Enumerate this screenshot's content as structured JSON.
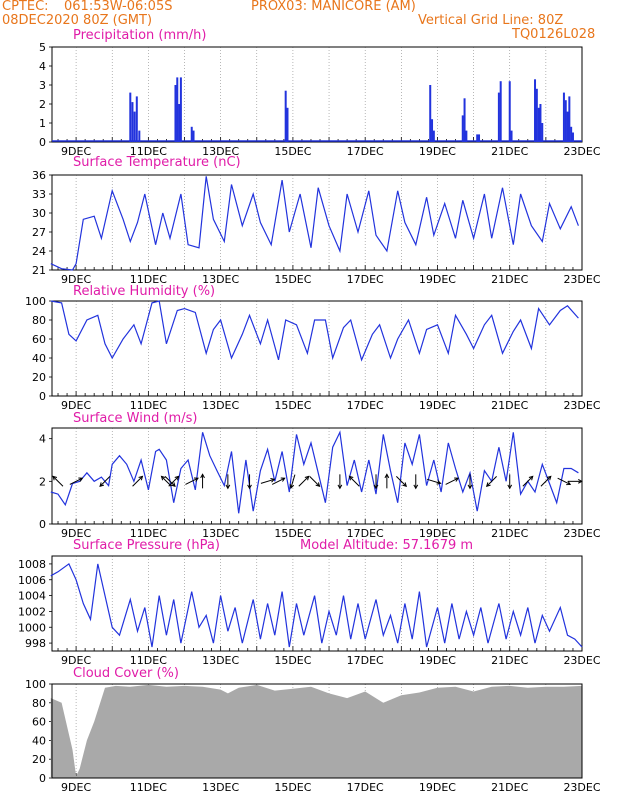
{
  "header": {
    "source": "CPTEC:",
    "coords": "061:53W-06:05S",
    "location": "PROX03: MANICORE (AM)",
    "datetime": "08DEC2020 80Z (GMT)",
    "gridline": "Vertical Grid Line: 80Z",
    "code": "TQ0126L028"
  },
  "colors": {
    "header": "#e8761c",
    "title": "#e01ca8",
    "line": "#2233dd",
    "bar": "#2233dd",
    "cloud": "#a9a9a9",
    "arrow": "#000000"
  },
  "x_tick_labels": [
    "9DEC",
    "11DEC",
    "13DEC",
    "15DEC",
    "17DEC",
    "19DEC",
    "21DEC",
    "23DEC"
  ],
  "chart_data": [
    {
      "type": "bar",
      "title": "Precipitation (mm/h)",
      "ylim": [
        0,
        5
      ],
      "yticks": [
        "0",
        "1",
        "2",
        "3",
        "4",
        "5"
      ],
      "x_days_start": "8DEC 08Z",
      "x": [
        10.5,
        10.56,
        10.62,
        10.68,
        10.75,
        11.75,
        11.8,
        11.85,
        11.9,
        12.2,
        12.25,
        14.8,
        14.85,
        18.8,
        18.85,
        18.9,
        19.7,
        19.75,
        19.8,
        20.1,
        20.15,
        20.7,
        20.75,
        21.0,
        21.05,
        21.7,
        21.75,
        21.8,
        21.85,
        21.9,
        22.5,
        22.55,
        22.6,
        22.65,
        22.7,
        22.75
      ],
      "values": [
        2.6,
        2.1,
        1.6,
        2.4,
        0.6,
        3.0,
        3.4,
        2.0,
        3.4,
        0.8,
        0.6,
        2.7,
        1.8,
        3.0,
        1.2,
        0.6,
        1.4,
        2.3,
        0.6,
        0.4,
        0.4,
        2.6,
        3.2,
        3.2,
        0.6,
        3.3,
        2.8,
        1.8,
        2.0,
        1.0,
        2.6,
        2.2,
        1.6,
        2.4,
        0.8,
        0.5
      ]
    },
    {
      "type": "line",
      "title": "Surface Temperature (nC)",
      "ylim": [
        21,
        36
      ],
      "yticks": [
        "21",
        "24",
        "27",
        "30",
        "33",
        "36"
      ],
      "x": [
        8.3,
        8.6,
        8.9,
        9.0,
        9.2,
        9.5,
        9.7,
        10.0,
        10.3,
        10.5,
        10.7,
        10.9,
        11.2,
        11.4,
        11.6,
        11.9,
        12.1,
        12.4,
        12.6,
        12.8,
        13.1,
        13.3,
        13.6,
        13.9,
        14.1,
        14.4,
        14.7,
        14.9,
        15.2,
        15.5,
        15.7,
        16.0,
        16.3,
        16.5,
        16.8,
        17.1,
        17.3,
        17.6,
        17.9,
        18.1,
        18.4,
        18.7,
        18.9,
        19.2,
        19.5,
        19.7,
        20.0,
        20.3,
        20.5,
        20.8,
        21.1,
        21.3,
        21.6,
        21.9,
        22.1,
        22.4,
        22.7,
        22.9
      ],
      "values": [
        22.0,
        21.2,
        21.0,
        22.0,
        29.0,
        29.5,
        26.0,
        33.5,
        29.0,
        25.5,
        28.5,
        33.0,
        25.0,
        30.0,
        26.0,
        33.0,
        25.0,
        24.5,
        35.8,
        29.0,
        25.5,
        34.5,
        28.0,
        33.0,
        28.5,
        25.0,
        35.2,
        27.0,
        33.0,
        24.5,
        34.0,
        28.0,
        24.0,
        33.0,
        27.0,
        33.5,
        26.5,
        24.0,
        33.5,
        28.5,
        25.0,
        32.5,
        26.5,
        31.5,
        26.0,
        32.0,
        26.0,
        33.0,
        26.0,
        34.0,
        25.0,
        33.0,
        28.0,
        25.5,
        31.5,
        27.5,
        31.0,
        28.0
      ]
    },
    {
      "type": "line",
      "title": "Relative Humidity (%)",
      "ylim": [
        0,
        100
      ],
      "yticks": [
        "0",
        "20",
        "40",
        "60",
        "80",
        "100"
      ],
      "x": [
        8.3,
        8.6,
        8.8,
        9.0,
        9.3,
        9.6,
        9.8,
        10.0,
        10.3,
        10.6,
        10.8,
        11.1,
        11.3,
        11.5,
        11.8,
        12.0,
        12.3,
        12.6,
        12.8,
        13.0,
        13.3,
        13.6,
        13.8,
        14.1,
        14.3,
        14.6,
        14.8,
        15.1,
        15.4,
        15.6,
        15.9,
        16.1,
        16.4,
        16.6,
        16.9,
        17.2,
        17.4,
        17.7,
        17.9,
        18.2,
        18.5,
        18.7,
        19.0,
        19.3,
        19.5,
        19.8,
        20.0,
        20.3,
        20.5,
        20.8,
        21.1,
        21.3,
        21.6,
        21.8,
        22.1,
        22.4,
        22.6,
        22.9
      ],
      "values": [
        100,
        98,
        65,
        58,
        80,
        85,
        55,
        40,
        60,
        75,
        55,
        98,
        100,
        55,
        90,
        92,
        88,
        45,
        70,
        80,
        40,
        65,
        85,
        55,
        80,
        38,
        80,
        75,
        45,
        80,
        80,
        40,
        72,
        80,
        38,
        65,
        75,
        40,
        60,
        80,
        45,
        70,
        75,
        45,
        85,
        65,
        50,
        75,
        85,
        45,
        68,
        80,
        50,
        92,
        75,
        90,
        95,
        82
      ]
    },
    {
      "type": "line",
      "title": "Surface Wind (m/s)",
      "ylim": [
        0,
        4.5
      ],
      "yticks": [
        "0",
        "2",
        "4"
      ],
      "x": [
        8.3,
        8.5,
        8.7,
        8.9,
        9.1,
        9.3,
        9.5,
        9.7,
        9.9,
        10.0,
        10.2,
        10.4,
        10.6,
        10.8,
        11.0,
        11.2,
        11.3,
        11.5,
        11.7,
        11.9,
        12.1,
        12.3,
        12.5,
        12.7,
        12.9,
        13.1,
        13.3,
        13.5,
        13.7,
        13.9,
        14.1,
        14.3,
        14.5,
        14.7,
        14.9,
        15.1,
        15.3,
        15.5,
        15.7,
        15.9,
        16.1,
        16.3,
        16.5,
        16.7,
        16.9,
        17.1,
        17.3,
        17.5,
        17.7,
        17.9,
        18.1,
        18.3,
        18.5,
        18.7,
        18.9,
        19.1,
        19.3,
        19.5,
        19.7,
        19.9,
        20.1,
        20.3,
        20.5,
        20.7,
        20.9,
        21.1,
        21.3,
        21.5,
        21.7,
        21.9,
        22.1,
        22.3,
        22.5,
        22.7,
        22.9
      ],
      "values": [
        1.5,
        1.4,
        0.9,
        1.9,
        2.0,
        2.4,
        2.0,
        2.2,
        1.8,
        2.8,
        3.2,
        2.8,
        2.0,
        3.0,
        1.6,
        3.4,
        3.5,
        3.0,
        1.0,
        2.6,
        3.0,
        1.6,
        4.3,
        3.2,
        2.5,
        1.8,
        3.4,
        0.5,
        3.0,
        0.6,
        2.5,
        3.5,
        2.0,
        3.4,
        1.5,
        4.2,
        2.8,
        3.8,
        2.4,
        1.0,
        3.6,
        4.3,
        1.8,
        3.0,
        1.5,
        3.0,
        1.4,
        4.2,
        2.5,
        1.0,
        3.8,
        2.8,
        4.2,
        1.8,
        3.0,
        1.5,
        3.8,
        2.6,
        1.5,
        2.4,
        0.6,
        2.5,
        2.0,
        3.6,
        2.0,
        4.3,
        1.4,
        2.0,
        1.5,
        2.8,
        1.9,
        1.0,
        2.6,
        2.6,
        2.4
      ],
      "arrows": [
        {
          "day": 8.5,
          "u": -1,
          "v": 1
        },
        {
          "day": 9.0,
          "u": 1,
          "v": 0.5
        },
        {
          "day": 9.8,
          "u": -1,
          "v": -1
        },
        {
          "day": 10.7,
          "u": 1,
          "v": 1
        },
        {
          "day": 11.5,
          "u": -1,
          "v": 1
        },
        {
          "day": 11.6,
          "u": 1,
          "v": -1
        },
        {
          "day": 11.7,
          "u": 1,
          "v": 1
        },
        {
          "day": 12.2,
          "u": 1,
          "v": 0.5
        },
        {
          "day": 12.5,
          "u": 0,
          "v": 1
        },
        {
          "day": 13.2,
          "u": 0,
          "v": -1
        },
        {
          "day": 13.8,
          "u": 0,
          "v": -1
        },
        {
          "day": 14.3,
          "u": 1,
          "v": 0.3
        },
        {
          "day": 14.6,
          "u": 1,
          "v": 0.5
        },
        {
          "day": 15.0,
          "u": -0.3,
          "v": -1
        },
        {
          "day": 15.3,
          "u": 1,
          "v": 1
        },
        {
          "day": 15.6,
          "u": 1,
          "v": -1
        },
        {
          "day": 16.3,
          "u": 0,
          "v": -1
        },
        {
          "day": 16.7,
          "u": -1,
          "v": 1
        },
        {
          "day": 17.3,
          "u": 0,
          "v": -1
        },
        {
          "day": 17.6,
          "u": 0,
          "v": 1
        },
        {
          "day": 18.0,
          "u": 1,
          "v": -1
        },
        {
          "day": 18.4,
          "u": 0,
          "v": -1
        },
        {
          "day": 18.9,
          "u": 1,
          "v": -0.3
        },
        {
          "day": 19.4,
          "u": 1,
          "v": 0.5
        },
        {
          "day": 19.9,
          "u": 0,
          "v": -1
        },
        {
          "day": 20.5,
          "u": -1,
          "v": -1
        },
        {
          "day": 21.0,
          "u": 0,
          "v": -1
        },
        {
          "day": 21.5,
          "u": 1,
          "v": 1
        },
        {
          "day": 22.0,
          "u": 1,
          "v": 1
        },
        {
          "day": 22.5,
          "u": 1,
          "v": -0.5
        },
        {
          "day": 22.8,
          "u": 1,
          "v": 0
        }
      ]
    },
    {
      "type": "line",
      "title": "Surface Pressure (hPa)",
      "subtitle": "Model Altitude: 57.1679 m",
      "ylim": [
        997,
        1009
      ],
      "yticks": [
        "998",
        "1000",
        "1002",
        "1004",
        "1006",
        "1008"
      ],
      "x": [
        8.3,
        8.5,
        8.8,
        9.0,
        9.2,
        9.4,
        9.6,
        9.8,
        10.0,
        10.2,
        10.5,
        10.7,
        10.9,
        11.1,
        11.3,
        11.5,
        11.7,
        11.9,
        12.2,
        12.4,
        12.6,
        12.8,
        13.0,
        13.2,
        13.4,
        13.6,
        13.9,
        14.1,
        14.3,
        14.5,
        14.7,
        14.9,
        15.1,
        15.3,
        15.6,
        15.8,
        16.0,
        16.2,
        16.4,
        16.6,
        16.8,
        17.0,
        17.3,
        17.5,
        17.7,
        17.9,
        18.1,
        18.3,
        18.5,
        18.7,
        19.0,
        19.2,
        19.4,
        19.6,
        19.8,
        20.0,
        20.2,
        20.4,
        20.7,
        20.9,
        21.1,
        21.3,
        21.5,
        21.7,
        21.9,
        22.1,
        22.4,
        22.6,
        22.8,
        23.0
      ],
      "values": [
        1006.5,
        1007.0,
        1008.0,
        1006.0,
        1003.0,
        1001.0,
        1008.0,
        1004.0,
        1000.0,
        999.0,
        1003.5,
        999.5,
        1002.5,
        997.5,
        1004.0,
        999.0,
        1003.5,
        998.0,
        1004.5,
        1000.0,
        1001.5,
        998.0,
        1004.0,
        999.5,
        1002.5,
        998.0,
        1003.5,
        998.5,
        1003.0,
        999.0,
        1004.5,
        997.5,
        1003.0,
        999.0,
        1004.0,
        998.0,
        1002.0,
        999.0,
        1004.0,
        998.5,
        1003.0,
        998.5,
        1003.5,
        999.0,
        1001.5,
        998.0,
        1003.0,
        998.5,
        1004.5,
        997.5,
        1002.5,
        998.0,
        1003.0,
        998.5,
        1002.0,
        999.0,
        1002.5,
        998.0,
        1003.0,
        998.5,
        1002.0,
        999.0,
        1002.5,
        998.0,
        1001.5,
        999.5,
        1002.5,
        999.0,
        998.5,
        997.5
      ]
    },
    {
      "type": "area",
      "title": "Cloud Cover (%)",
      "ylim": [
        0,
        100
      ],
      "yticks": [
        "0",
        "20",
        "40",
        "60",
        "80",
        "100"
      ],
      "x": [
        8.3,
        8.6,
        8.9,
        9.0,
        9.1,
        9.3,
        9.5,
        9.8,
        10.1,
        10.5,
        11.0,
        11.5,
        12.0,
        12.5,
        13.0,
        13.2,
        13.5,
        14.0,
        14.5,
        15.0,
        15.5,
        16.0,
        16.5,
        17.0,
        17.5,
        18.0,
        18.5,
        19.0,
        19.5,
        20.0,
        20.5,
        21.0,
        21.5,
        22.0,
        22.5,
        23.0
      ],
      "values": [
        85,
        80,
        30,
        2,
        10,
        40,
        60,
        96,
        98,
        97,
        99,
        97,
        98,
        97,
        94,
        90,
        96,
        99,
        93,
        95,
        97,
        90,
        85,
        92,
        80,
        88,
        91,
        96,
        97,
        92,
        97,
        98,
        96,
        97,
        97,
        98
      ]
    }
  ]
}
